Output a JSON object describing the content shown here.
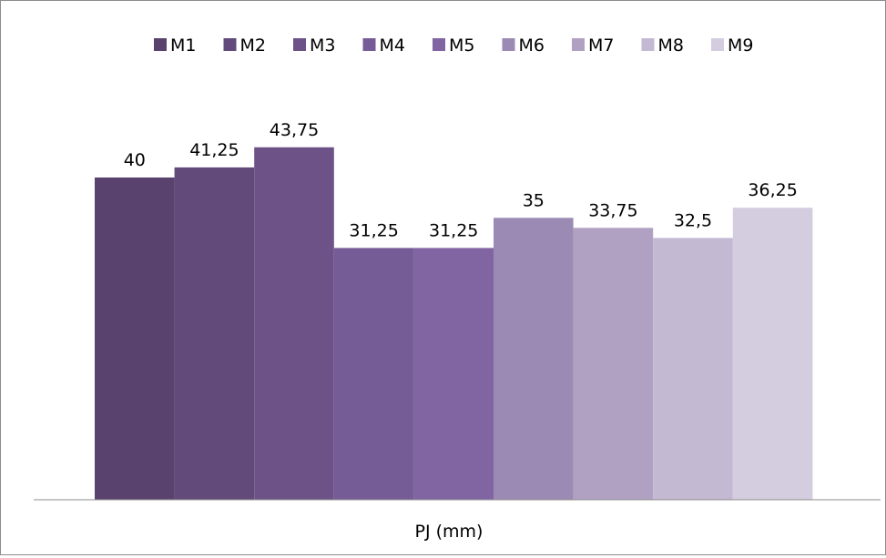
{
  "chart_data": {
    "type": "bar",
    "categories": [
      "PJ (mm)"
    ],
    "xlabel": "PJ (mm)",
    "ylabel": "",
    "title": "",
    "ylim": [
      0,
      50
    ],
    "legend_position": "top",
    "grid": false,
    "data_label_decimal": ",",
    "series": [
      {
        "name": "M1",
        "values": [
          40
        ],
        "label": "40",
        "color": "#5a426f"
      },
      {
        "name": "M2",
        "values": [
          41.25
        ],
        "label": "41,25",
        "color": "#624a7b"
      },
      {
        "name": "M3",
        "values": [
          43.75
        ],
        "label": "43,75",
        "color": "#6c5287"
      },
      {
        "name": "M4",
        "values": [
          31.25
        ],
        "label": "31,25",
        "color": "#765c96"
      },
      {
        "name": "M5",
        "values": [
          31.25
        ],
        "label": "31,25",
        "color": "#8065a2"
      },
      {
        "name": "M6",
        "values": [
          35
        ],
        "label": "35",
        "color": "#9b8ab3"
      },
      {
        "name": "M7",
        "values": [
          33.75
        ],
        "label": "33,75",
        "color": "#b0a1c3"
      },
      {
        "name": "M8",
        "values": [
          32.5
        ],
        "label": "32,5",
        "color": "#c3b9d3"
      },
      {
        "name": "M9",
        "values": [
          36.25
        ],
        "label": "36,25",
        "color": "#d3cddf"
      }
    ]
  }
}
